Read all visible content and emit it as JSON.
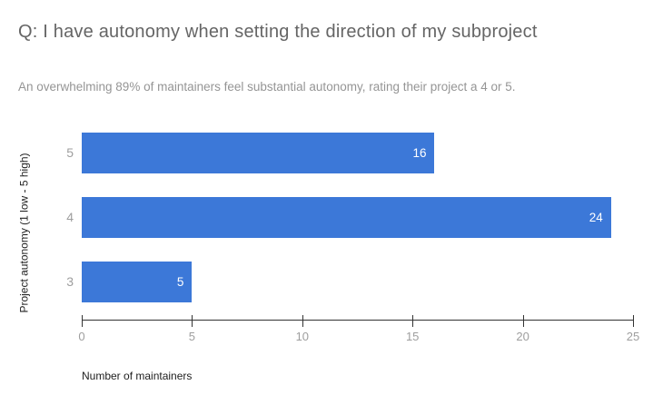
{
  "chart_data": {
    "type": "bar",
    "orientation": "horizontal",
    "title": "Q: I have autonomy when setting the direction of my subproject",
    "subtitle": "An overwhelming 89% of maintainers feel substantial autonomy, rating their project a 4 or 5.",
    "categories": [
      "5",
      "4",
      "3"
    ],
    "values": [
      16,
      24,
      5
    ],
    "xlabel": "Number of maintainers",
    "ylabel": "Project autonomy (1 low - 5 high)",
    "xlim": [
      0,
      25
    ],
    "xticks": [
      0,
      5,
      10,
      15,
      20,
      25
    ],
    "grid": false,
    "legend": "none",
    "bar_color": "#3C78D8",
    "value_label_color": "#ffffff",
    "axis_label_color": "#9e9e9e"
  }
}
